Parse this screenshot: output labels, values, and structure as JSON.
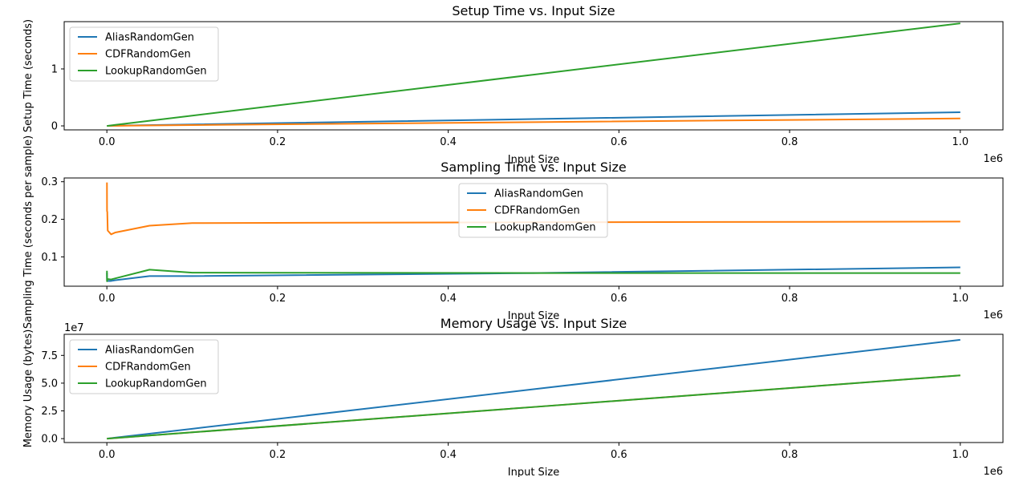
{
  "chart_data": [
    {
      "type": "line",
      "title": "Setup Time vs. Input Size",
      "xlabel": "Input Size",
      "ylabel": "Setup Time (seconds)",
      "x_offset_label": "1e6",
      "y_offset_label": "",
      "xlim": [
        -50000,
        1050000
      ],
      "ylim": [
        -0.07,
        1.83
      ],
      "xticks": [
        0,
        200000,
        400000,
        600000,
        800000,
        1000000
      ],
      "xtick_labels": [
        "0.0",
        "0.2",
        "0.4",
        "0.6",
        "0.8",
        "1.0"
      ],
      "yticks": [
        0,
        1
      ],
      "ytick_labels": [
        "0",
        "1"
      ],
      "legend": "upper-left",
      "x": [
        100,
        1000,
        10000,
        100000,
        500000,
        1000000
      ],
      "series": [
        {
          "name": "AliasRandomGen",
          "color": "#1f77b4",
          "values": [
            0.0,
            0.0,
            0.003,
            0.025,
            0.12,
            0.24
          ]
        },
        {
          "name": "CDFRandomGen",
          "color": "#ff7f0e",
          "values": [
            0.0,
            0.0,
            0.002,
            0.014,
            0.066,
            0.13
          ]
        },
        {
          "name": "LookupRandomGen",
          "color": "#2ca02c",
          "values": [
            0.0,
            0.0,
            0.018,
            0.18,
            0.9,
            1.8
          ]
        }
      ]
    },
    {
      "type": "line",
      "title": "Sampling Time vs. Input Size",
      "xlabel": "Input Size",
      "ylabel": "Sampling Time (seconds per sample)",
      "x_offset_label": "1e6",
      "y_offset_label": "",
      "xlim": [
        -50000,
        1050000
      ],
      "ylim": [
        0.022,
        0.31
      ],
      "xticks": [
        0,
        200000,
        400000,
        600000,
        800000,
        1000000
      ],
      "xtick_labels": [
        "0.0",
        "0.2",
        "0.4",
        "0.6",
        "0.8",
        "1.0"
      ],
      "yticks": [
        0.1,
        0.2,
        0.3
      ],
      "ytick_labels": [
        "0.1",
        "0.2",
        "0.3"
      ],
      "legend": "upper-center",
      "x": [
        100,
        200,
        500,
        1000,
        5000,
        10000,
        50000,
        100000,
        500000,
        1000000
      ],
      "series": [
        {
          "name": "AliasRandomGen",
          "color": "#1f77b4",
          "values": [
            0.058,
            0.038,
            0.037,
            0.036,
            0.036,
            0.038,
            0.049,
            0.049,
            0.057,
            0.072
          ]
        },
        {
          "name": "CDFRandomGen",
          "color": "#ff7f0e",
          "values": [
            0.298,
            0.222,
            0.22,
            0.17,
            0.16,
            0.165,
            0.183,
            0.19,
            0.192,
            0.194
          ]
        },
        {
          "name": "LookupRandomGen",
          "color": "#2ca02c",
          "values": [
            0.063,
            0.035,
            0.042,
            0.041,
            0.04,
            0.043,
            0.066,
            0.058,
            0.057,
            0.057
          ]
        }
      ]
    },
    {
      "type": "line",
      "title": "Memory Usage vs. Input Size",
      "xlabel": "Input Size",
      "ylabel": "Memory Usage (bytes)",
      "x_offset_label": "1e6",
      "y_offset_label": "1e7",
      "xlim": [
        -50000,
        1050000
      ],
      "ylim": [
        -3500000,
        94000000
      ],
      "xticks": [
        0,
        200000,
        400000,
        600000,
        800000,
        1000000
      ],
      "xtick_labels": [
        "0.0",
        "0.2",
        "0.4",
        "0.6",
        "0.8",
        "1.0"
      ],
      "yticks": [
        0,
        25000000,
        50000000,
        75000000
      ],
      "ytick_labels": [
        "0.0",
        "2.5",
        "5.0",
        "7.5"
      ],
      "legend": "upper-left",
      "x": [
        100,
        1000,
        10000,
        100000,
        500000,
        1000000
      ],
      "series": [
        {
          "name": "AliasRandomGen",
          "color": "#1f77b4",
          "values": [
            8900,
            89000,
            890000,
            8900000,
            44500000,
            89000000
          ]
        },
        {
          "name": "CDFRandomGen",
          "color": "#ff7f0e",
          "values": [
            5700,
            57000,
            570000,
            5700000,
            28500000,
            57000000
          ]
        },
        {
          "name": "LookupRandomGen",
          "color": "#2ca02c",
          "values": [
            5700,
            57000,
            570000,
            5700000,
            28500000,
            57000000
          ]
        }
      ]
    }
  ]
}
